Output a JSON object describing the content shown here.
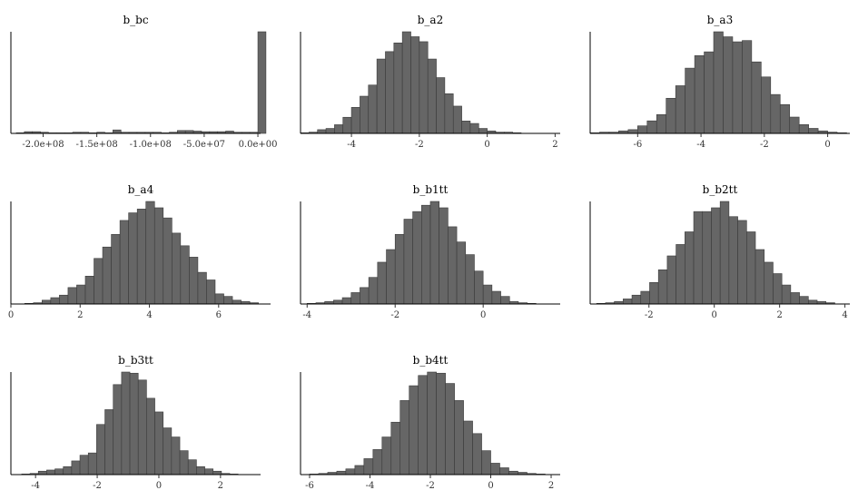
{
  "colors": {
    "bar_fill": "#666666",
    "bar_stroke": "#3a3a3a",
    "axis": "#000000",
    "background": "#ffffff"
  },
  "chart_data": [
    {
      "type": "bar",
      "title": "b_bc",
      "xlim": [
        -230000000,
        2500000
      ],
      "ticks": [
        -200000000,
        -150000000,
        -100000000,
        -50000000,
        0
      ],
      "tick_labels": [
        "-2.0e+08",
        "-1.5e+08",
        "-1.0e+08",
        "-5.0e+07",
        "0.0e+00"
      ],
      "bin_start": -225000000,
      "bin_width": 7500000,
      "counts": [
        0.5,
        1.5,
        1.5,
        1,
        0.5,
        0.5,
        0.5,
        1,
        1,
        0.5,
        1,
        0.5,
        3,
        1,
        1,
        1,
        1,
        1,
        0.5,
        1,
        2.5,
        2.5,
        2,
        1.5,
        1.5,
        1.5,
        2,
        1,
        1,
        1,
        88
      ],
      "ymax": 88
    },
    {
      "type": "bar",
      "title": "b_a2",
      "xlim": [
        -5.5,
        2.15
      ],
      "ticks": [
        -4,
        -2,
        0,
        2
      ],
      "tick_labels": [
        "-4",
        "-2",
        "0",
        "2"
      ],
      "bin_start": -5.5,
      "bin_width": 0.25,
      "counts": [
        0.5,
        1,
        3,
        4,
        7,
        13,
        21,
        30,
        39,
        60,
        66,
        73,
        82,
        78,
        74,
        60,
        45,
        32,
        22,
        10,
        8,
        4,
        2,
        1,
        1,
        0.5
      ],
      "ymax": 82
    },
    {
      "type": "bar",
      "title": "b_a3",
      "xlim": [
        -7.5,
        0.7
      ],
      "ticks": [
        -6,
        -4,
        -2,
        0
      ],
      "tick_labels": [
        "-6",
        "-4",
        "-2",
        "0"
      ],
      "bin_start": -7.5,
      "bin_width": 0.3,
      "counts": [
        0.5,
        1,
        1,
        2,
        3,
        6,
        10,
        15,
        28,
        38,
        52,
        62,
        65,
        81,
        77,
        73,
        74,
        57,
        45,
        31,
        23,
        13,
        7,
        4,
        2,
        1,
        0.5
      ],
      "ymax": 81
    },
    {
      "type": "bar",
      "title": "b_a4",
      "xlim": [
        0,
        7.5
      ],
      "ticks": [
        0,
        2,
        4,
        6
      ],
      "tick_labels": [
        "0",
        "2",
        "4",
        "6"
      ],
      "bin_start": 0.4,
      "bin_width": 0.25,
      "counts": [
        0.5,
        1,
        3,
        5,
        7,
        13,
        15,
        22,
        36,
        45,
        55,
        66,
        72,
        75,
        81,
        76,
        68,
        56,
        46,
        37,
        25,
        19,
        8,
        6,
        3,
        2,
        1
      ],
      "ymax": 81
    },
    {
      "type": "bar",
      "title": "b_b1tt",
      "xlim": [
        -4.15,
        1.75
      ],
      "ticks": [
        -4,
        -2,
        0
      ],
      "tick_labels": [
        "-4",
        "-2",
        "0"
      ],
      "bin_start": -4.0,
      "bin_width": 0.2,
      "counts": [
        0.5,
        1,
        2,
        3,
        5,
        9,
        13,
        21,
        33,
        43,
        55,
        67,
        73,
        78,
        81,
        76,
        61,
        49,
        39,
        26,
        15,
        10,
        6,
        2,
        1,
        0.5
      ],
      "ymax": 81
    },
    {
      "type": "bar",
      "title": "b_b2tt",
      "xlim": [
        -3.8,
        4.15
      ],
      "ticks": [
        -2,
        0,
        2,
        4
      ],
      "tick_labels": [
        "-2",
        "0",
        "2",
        "4"
      ],
      "bin_start": -3.6,
      "bin_width": 0.27,
      "counts": [
        0.5,
        1,
        2,
        4,
        7,
        10,
        17,
        27,
        38,
        47,
        57,
        73,
        73,
        76,
        81,
        69,
        66,
        57,
        43,
        33,
        24,
        15,
        9,
        6,
        3,
        2,
        1
      ],
      "ymax": 81
    },
    {
      "type": "bar",
      "title": "b_b3tt",
      "xlim": [
        -4.8,
        3.3
      ],
      "ticks": [
        -4,
        -2,
        0,
        2
      ],
      "tick_labels": [
        "-4",
        "-2",
        "0",
        "2"
      ],
      "bin_start": -4.45,
      "bin_width": 0.27,
      "counts": [
        0.5,
        1,
        3,
        4,
        5,
        7,
        12,
        17,
        19,
        44,
        57,
        79,
        90,
        89,
        83,
        67,
        55,
        41,
        33,
        21,
        13,
        7,
        5,
        3,
        1,
        0.5
      ],
      "ymax": 90
    },
    {
      "type": "bar",
      "title": "b_b4tt",
      "xlim": [
        -6.3,
        2.3
      ],
      "ticks": [
        -6,
        -4,
        -2,
        0,
        2
      ],
      "tick_labels": [
        "-6",
        "-4",
        "-2",
        "0",
        "2"
      ],
      "bin_start": -6.0,
      "bin_width": 0.3,
      "counts": [
        0.5,
        1,
        2,
        3,
        5,
        8,
        14,
        22,
        33,
        46,
        65,
        78,
        87,
        90,
        89,
        80,
        65,
        47,
        36,
        21,
        10,
        6,
        3,
        2,
        1,
        0.5
      ],
      "ymax": 90
    }
  ]
}
